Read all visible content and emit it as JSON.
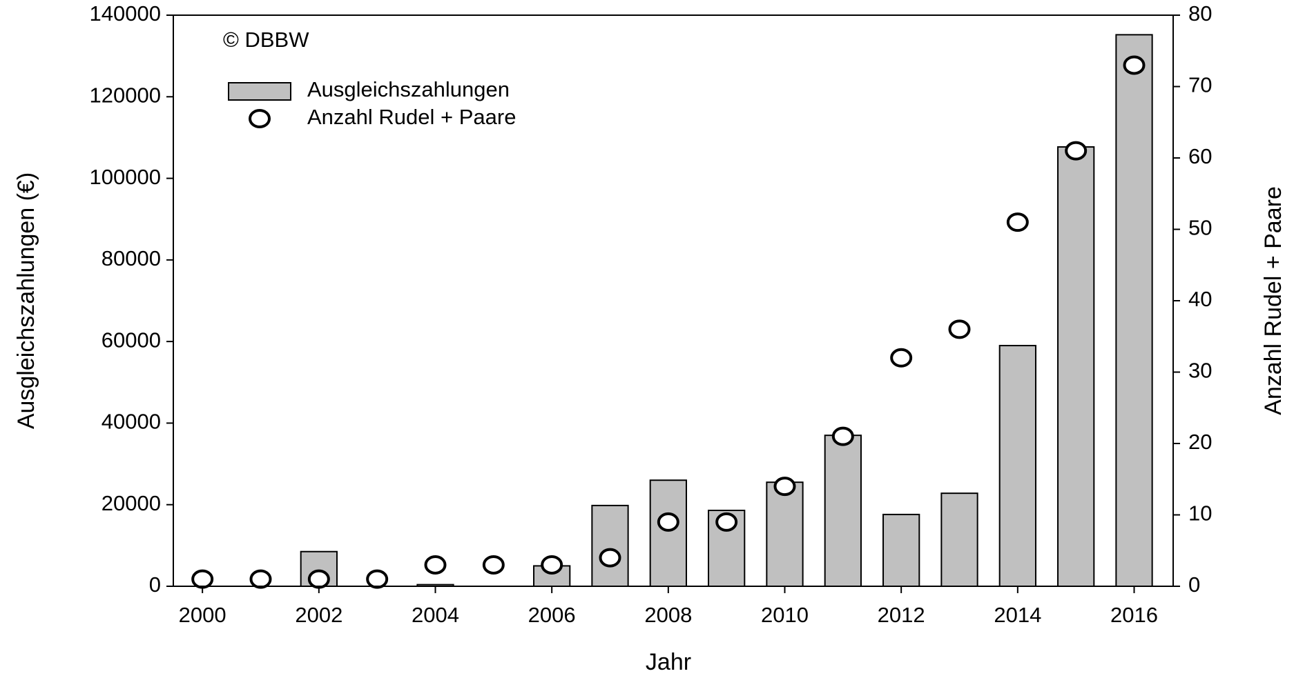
{
  "chart_data": {
    "type": "bar",
    "x": [
      2000,
      2001,
      2002,
      2003,
      2004,
      2005,
      2006,
      2007,
      2008,
      2009,
      2010,
      2011,
      2012,
      2013,
      2014,
      2015,
      2016
    ],
    "series": [
      {
        "name": "Ausgleichszahlungen",
        "type": "bar",
        "color": "#c0c0c0",
        "values": [
          0,
          0,
          8500,
          0,
          400,
          0,
          5000,
          19800,
          26000,
          18600,
          25500,
          37000,
          17600,
          22800,
          59000,
          107700,
          135200
        ]
      },
      {
        "name": "Anzahl Rudel + Paare",
        "type": "scatter",
        "axis": "y2",
        "color": "#ffffff",
        "values": [
          1,
          1,
          1,
          1,
          3,
          3,
          3,
          4,
          9,
          9,
          14,
          21,
          32,
          36,
          51,
          61,
          73
        ]
      }
    ],
    "xlabel": "Jahr",
    "ylabel": "Ausgleichszahlungen (€)",
    "y2label": "Anzahl Rudel + Paare",
    "annotation": "© DBBW",
    "xlim": [
      1999.5,
      2016.67
    ],
    "xticks": [
      2000,
      2002,
      2004,
      2006,
      2008,
      2010,
      2012,
      2014,
      2016
    ],
    "ylim": [
      0,
      140000
    ],
    "yticks": [
      0,
      20000,
      40000,
      60000,
      80000,
      100000,
      120000,
      140000
    ],
    "y2lim": [
      0,
      80
    ],
    "y2ticks": [
      0,
      10,
      20,
      30,
      40,
      50,
      60,
      70,
      80
    ],
    "legend": "upper left",
    "grid": false
  }
}
